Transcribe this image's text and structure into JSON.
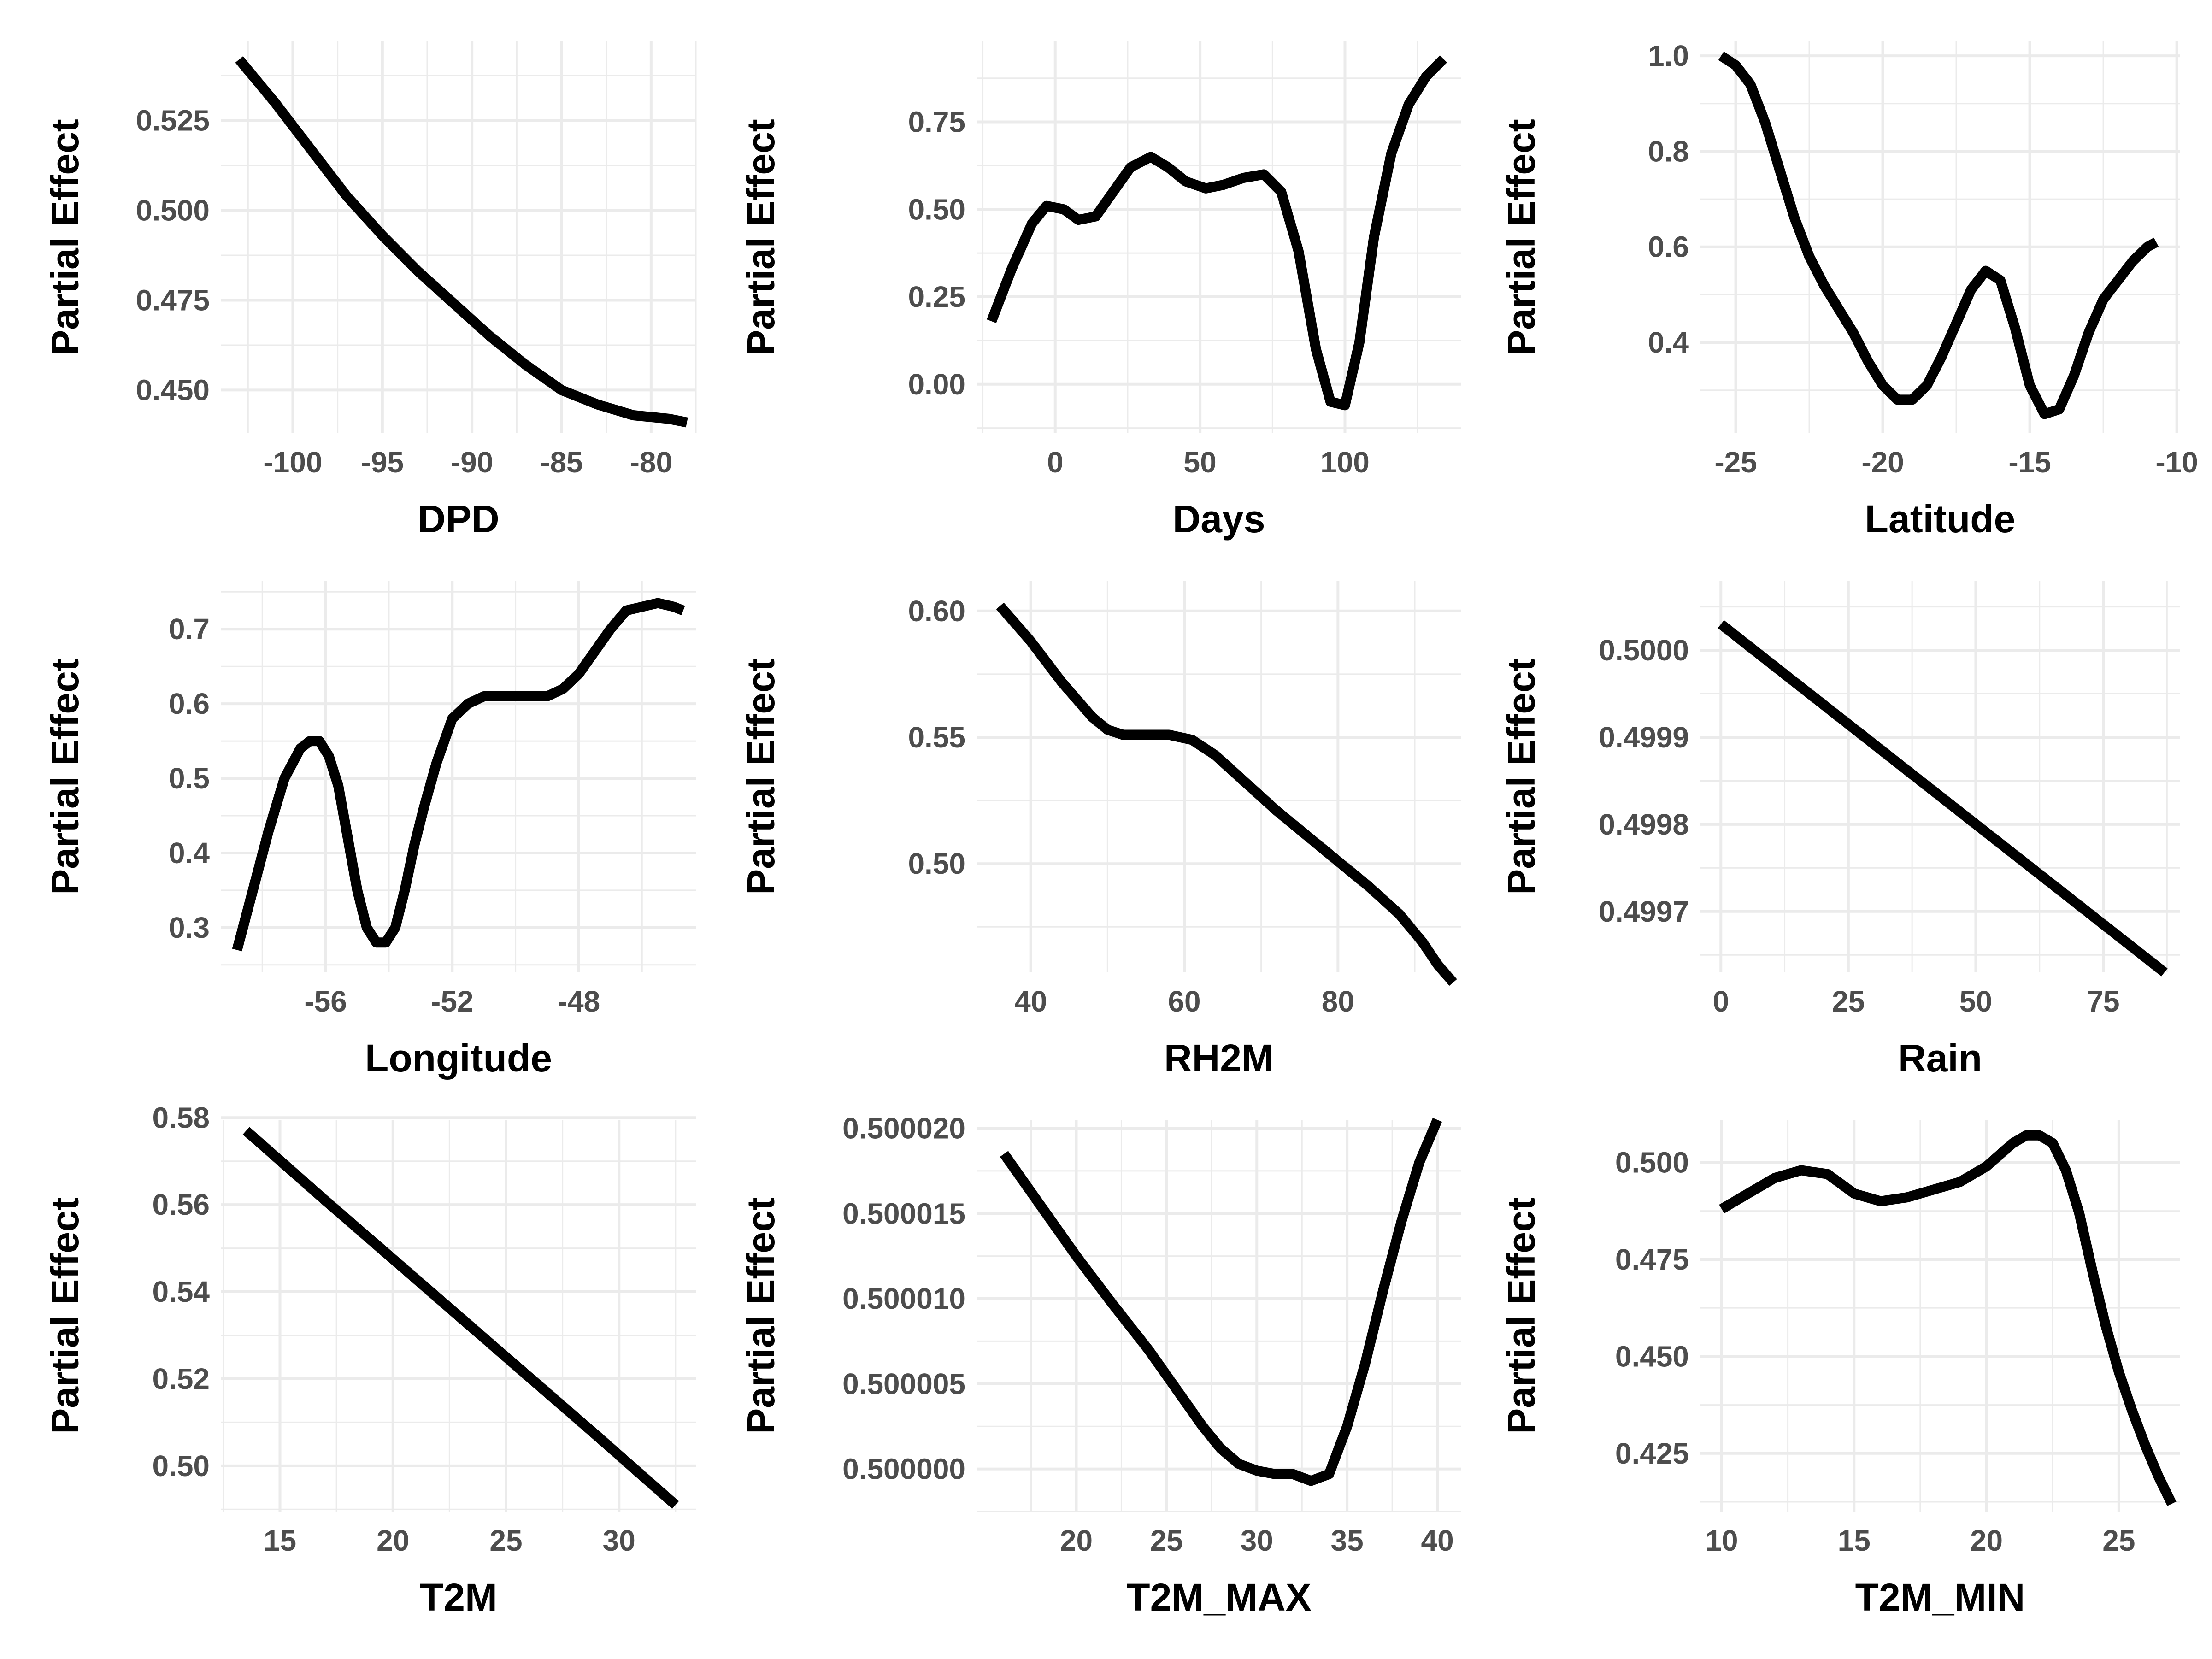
{
  "chart_data": [
    {
      "type": "line",
      "xlabel": "DPD",
      "ylabel": "Partial Effect",
      "xlim": [
        -104,
        -77.5
      ],
      "ylim": [
        0.438,
        0.547
      ],
      "xticks": [
        -100,
        -95,
        -90,
        -85,
        -80
      ],
      "yticks": [
        0.45,
        0.475,
        0.5,
        0.525
      ],
      "ytick_labels": [
        "0.450",
        "0.475",
        "0.500",
        "0.525"
      ],
      "x": [
        -103,
        -101,
        -99,
        -97,
        -95,
        -93,
        -91,
        -89,
        -87,
        -85,
        -83,
        -81,
        -79,
        -78
      ],
      "y": [
        0.542,
        0.53,
        0.517,
        0.504,
        0.493,
        0.483,
        0.474,
        0.465,
        0.457,
        0.45,
        0.446,
        0.443,
        0.442,
        0.441
      ],
      "grid": true
    },
    {
      "type": "line",
      "xlabel": "Days",
      "ylabel": "Partial Effect",
      "xlim": [
        -27,
        140
      ],
      "ylim": [
        -0.14,
        0.98
      ],
      "xticks": [
        0,
        50,
        100
      ],
      "yticks": [
        0.0,
        0.25,
        0.5,
        0.75
      ],
      "ytick_labels": [
        "0.00",
        "0.25",
        "0.50",
        "0.75"
      ],
      "x": [
        -22,
        -15,
        -8,
        -3,
        3,
        8,
        14,
        20,
        26,
        33,
        39,
        45,
        52,
        58,
        65,
        72,
        78,
        84,
        90,
        95,
        100,
        105,
        110,
        116,
        122,
        128,
        134
      ],
      "y": [
        0.18,
        0.33,
        0.46,
        0.51,
        0.5,
        0.47,
        0.48,
        0.55,
        0.62,
        0.65,
        0.62,
        0.58,
        0.56,
        0.57,
        0.59,
        0.6,
        0.55,
        0.38,
        0.1,
        -0.05,
        -0.06,
        0.12,
        0.42,
        0.66,
        0.8,
        0.88,
        0.93
      ],
      "grid": true
    },
    {
      "type": "line",
      "xlabel": "Latitude",
      "ylabel": "Partial Effect",
      "xlim": [
        -26.2,
        -9.9
      ],
      "ylim": [
        0.21,
        1.03
      ],
      "xticks": [
        -25,
        -20,
        -15,
        -10
      ],
      "yticks": [
        0.4,
        0.6,
        0.8,
        1.0
      ],
      "ytick_labels": [
        "0.4",
        "0.6",
        "0.8",
        "1.0"
      ],
      "x": [
        -25.5,
        -25.0,
        -24.5,
        -24.0,
        -23.5,
        -23.0,
        -22.5,
        -22.0,
        -21.5,
        -21.0,
        -20.5,
        -20.0,
        -19.5,
        -19.0,
        -18.5,
        -18.0,
        -17.5,
        -17.0,
        -16.5,
        -16.0,
        -15.5,
        -15.0,
        -14.5,
        -14.0,
        -13.5,
        -13.0,
        -12.5,
        -12.0,
        -11.5,
        -11.0,
        -10.7
      ],
      "y": [
        1.0,
        0.98,
        0.94,
        0.86,
        0.76,
        0.66,
        0.58,
        0.52,
        0.47,
        0.42,
        0.36,
        0.31,
        0.28,
        0.28,
        0.31,
        0.37,
        0.44,
        0.51,
        0.55,
        0.53,
        0.43,
        0.31,
        0.25,
        0.26,
        0.33,
        0.42,
        0.49,
        0.53,
        0.57,
        0.6,
        0.61
      ],
      "grid": true
    },
    {
      "type": "line",
      "xlabel": "Longitude",
      "ylabel": "Partial Effect",
      "xlim": [
        -59.3,
        -44.3
      ],
      "ylim": [
        0.24,
        0.765
      ],
      "xticks": [
        -56,
        -52,
        -48
      ],
      "yticks": [
        0.3,
        0.4,
        0.5,
        0.6,
        0.7
      ],
      "ytick_labels": [
        "0.3",
        "0.4",
        "0.5",
        "0.6",
        "0.7"
      ],
      "x": [
        -58.8,
        -58.3,
        -57.8,
        -57.3,
        -56.8,
        -56.5,
        -56.2,
        -55.9,
        -55.6,
        -55.3,
        -55.0,
        -54.7,
        -54.4,
        -54.1,
        -53.8,
        -53.5,
        -53.2,
        -52.9,
        -52.5,
        -52.0,
        -51.5,
        -51.0,
        -50.5,
        -50.0,
        -49.5,
        -49.0,
        -48.5,
        -48.0,
        -47.5,
        -47.0,
        -46.5,
        -46.0,
        -45.5,
        -45.0,
        -44.7
      ],
      "y": [
        0.27,
        0.35,
        0.43,
        0.5,
        0.54,
        0.55,
        0.55,
        0.53,
        0.49,
        0.42,
        0.35,
        0.3,
        0.28,
        0.28,
        0.3,
        0.35,
        0.41,
        0.46,
        0.52,
        0.58,
        0.6,
        0.61,
        0.61,
        0.61,
        0.61,
        0.61,
        0.62,
        0.64,
        0.67,
        0.7,
        0.725,
        0.73,
        0.735,
        0.73,
        0.725
      ],
      "grid": true
    },
    {
      "type": "line",
      "xlabel": "RH2M",
      "ylabel": "Partial Effect",
      "xlim": [
        33,
        96
      ],
      "ylim": [
        0.457,
        0.612
      ],
      "xticks": [
        40,
        60,
        80
      ],
      "yticks": [
        0.5,
        0.55,
        0.6
      ],
      "ytick_labels": [
        "0.50",
        "0.55",
        "0.60"
      ],
      "x": [
        36,
        40,
        44,
        48,
        50,
        52,
        55,
        58,
        61,
        64,
        68,
        72,
        76,
        80,
        84,
        88,
        91,
        93,
        95
      ],
      "y": [
        0.602,
        0.588,
        0.572,
        0.558,
        0.553,
        0.551,
        0.551,
        0.551,
        0.549,
        0.543,
        0.532,
        0.521,
        0.511,
        0.501,
        0.491,
        0.48,
        0.469,
        0.46,
        0.453
      ],
      "grid": true
    },
    {
      "type": "line",
      "xlabel": "Rain",
      "ylabel": "Partial Effect",
      "xlim": [
        -4,
        90
      ],
      "ylim": [
        0.49963,
        0.50008
      ],
      "xticks": [
        0,
        25,
        50,
        75
      ],
      "yticks": [
        0.4997,
        0.4998,
        0.4999,
        0.5
      ],
      "ytick_labels": [
        "0.4997",
        "0.4998",
        "0.4999",
        "0.5000"
      ],
      "x": [
        0,
        87
      ],
      "y": [
        0.50003,
        0.49963
      ],
      "grid": true
    },
    {
      "type": "line",
      "xlabel": "T2M",
      "ylabel": "Partial Effect",
      "xlim": [
        12.4,
        33.4
      ],
      "ylim": [
        0.4895,
        0.5795
      ],
      "xticks": [
        15,
        20,
        25,
        30
      ],
      "yticks": [
        0.5,
        0.52,
        0.54,
        0.56,
        0.58
      ],
      "ytick_labels": [
        "0.50",
        "0.52",
        "0.54",
        "0.56",
        "0.58"
      ],
      "x": [
        13.5,
        17,
        21,
        25,
        29,
        32.5
      ],
      "y": [
        0.577,
        0.561,
        0.543,
        0.525,
        0.507,
        0.491
      ],
      "grid": true
    },
    {
      "type": "line",
      "xlabel": "T2M_MAX",
      "ylabel": "Partial Effect",
      "xlim": [
        14.5,
        41.3
      ],
      "ylim": [
        0.4999975,
        0.5000205
      ],
      "xticks": [
        20,
        25,
        30,
        35,
        40
      ],
      "yticks": [
        0.5,
        0.500005,
        0.50001,
        0.500015,
        0.50002
      ],
      "ytick_labels": [
        "0.500000",
        "0.500005",
        "0.500010",
        "0.500015",
        "0.500020"
      ],
      "x": [
        16,
        18,
        20,
        22,
        24,
        26,
        27,
        28,
        29,
        30,
        31,
        32,
        33,
        34,
        35,
        36,
        37,
        38,
        39,
        40
      ],
      "y": [
        0.5000185,
        0.5000155,
        0.5000125,
        0.5000097,
        0.500007,
        0.500004,
        0.5000025,
        0.5000012,
        0.5000003,
        0.4999999,
        0.4999997,
        0.4999997,
        0.4999993,
        0.4999997,
        0.5000025,
        0.5000062,
        0.5000105,
        0.5000145,
        0.500018,
        0.5000205
      ],
      "grid": true
    },
    {
      "type": "line",
      "xlabel": "T2M_MIN",
      "ylabel": "Partial Effect",
      "xlim": [
        9.2,
        27.3
      ],
      "ylim": [
        0.41,
        0.511
      ],
      "xticks": [
        10,
        15,
        20,
        25
      ],
      "yticks": [
        0.425,
        0.45,
        0.475,
        0.5
      ],
      "ytick_labels": [
        "0.425",
        "0.450",
        "0.475",
        "0.500"
      ],
      "x": [
        10,
        11,
        12,
        13,
        14,
        15,
        16,
        17,
        18,
        19,
        20,
        20.5,
        21,
        21.5,
        22,
        22.5,
        23,
        23.5,
        24,
        24.5,
        25,
        25.5,
        26,
        26.5,
        27
      ],
      "y": [
        0.488,
        0.492,
        0.496,
        0.498,
        0.497,
        0.492,
        0.49,
        0.491,
        0.493,
        0.495,
        0.499,
        0.502,
        0.505,
        0.507,
        0.507,
        0.505,
        0.498,
        0.487,
        0.472,
        0.458,
        0.446,
        0.436,
        0.427,
        0.419,
        0.412
      ],
      "grid": true
    }
  ]
}
